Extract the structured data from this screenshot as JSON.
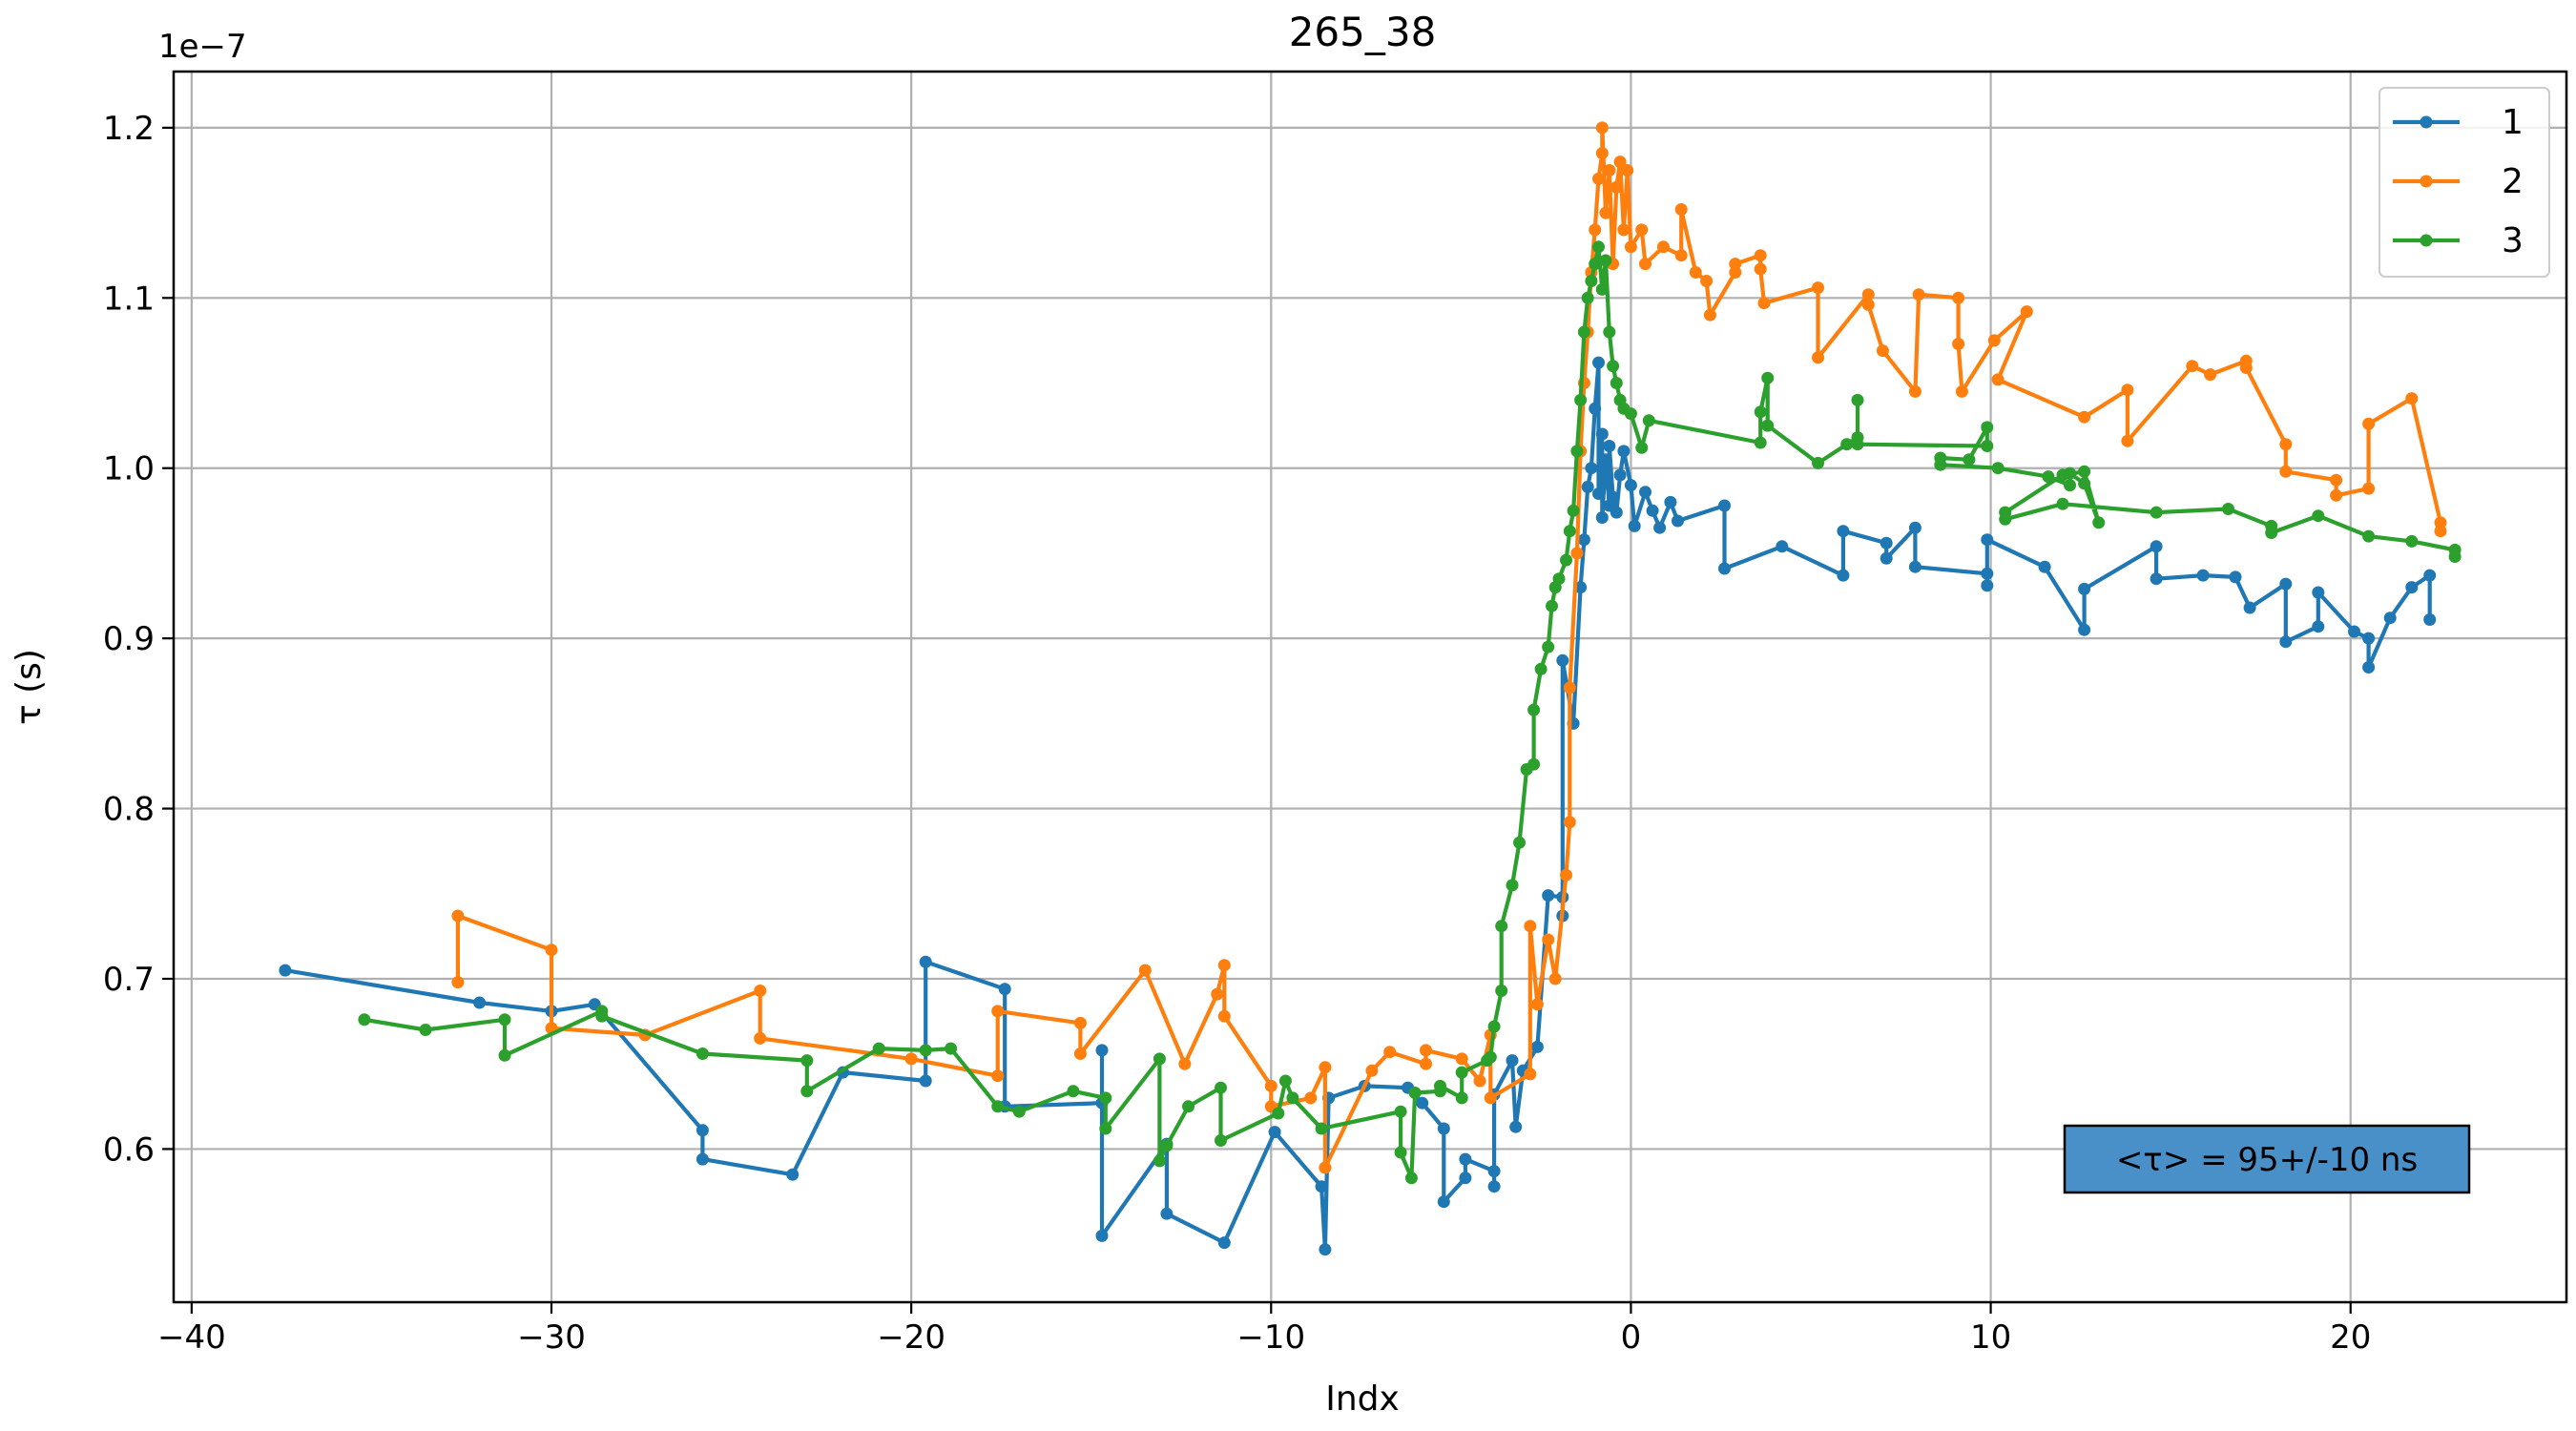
{
  "chart_data": {
    "type": "line",
    "title": "265_38",
    "xlabel": "Indx",
    "ylabel": "τ (s)",
    "y_offset_text": "1e−7",
    "xlim": [
      -40.5,
      26
    ],
    "ylim": [
      0.51,
      1.233
    ],
    "x_ticks": [
      -40,
      -30,
      -20,
      -10,
      0,
      10,
      20
    ],
    "x_tick_labels": [
      "−40",
      "−30",
      "−20",
      "−10",
      "0",
      "10",
      "20"
    ],
    "y_ticks": [
      0.6,
      0.7,
      0.8,
      0.9,
      1.0,
      1.1,
      1.2
    ],
    "y_tick_labels": [
      "0.6",
      "0.7",
      "0.8",
      "0.9",
      "1.0",
      "1.1",
      "1.2"
    ],
    "grid": true,
    "legend_position": "top-right",
    "annotation": "<τ> = 95+/-10 ns",
    "colors": {
      "annotation_bg": "#4a90c8",
      "grid": "#b0b0b0"
    },
    "series": [
      {
        "name": "1",
        "color": "#1f77b4",
        "points": [
          [
            -37.4,
            0.705
          ],
          [
            -32.0,
            0.686
          ],
          [
            -30.0,
            0.681
          ],
          [
            -28.8,
            0.685
          ],
          [
            -25.8,
            0.611
          ],
          [
            -25.8,
            0.594
          ],
          [
            -23.3,
            0.585
          ],
          [
            -21.9,
            0.645
          ],
          [
            -19.6,
            0.64
          ],
          [
            -19.6,
            0.71
          ],
          [
            -17.4,
            0.694
          ],
          [
            -17.4,
            0.625
          ],
          [
            -14.7,
            0.627
          ],
          [
            -14.7,
            0.658
          ],
          [
            -14.7,
            0.549
          ],
          [
            -12.9,
            0.603
          ],
          [
            -12.9,
            0.562
          ],
          [
            -11.3,
            0.545
          ],
          [
            -9.9,
            0.61
          ],
          [
            -8.6,
            0.578
          ],
          [
            -8.5,
            0.541
          ],
          [
            -8.4,
            0.63
          ],
          [
            -7.4,
            0.637
          ],
          [
            -6.2,
            0.636
          ],
          [
            -5.8,
            0.627
          ],
          [
            -5.2,
            0.612
          ],
          [
            -5.2,
            0.569
          ],
          [
            -4.6,
            0.583
          ],
          [
            -4.6,
            0.594
          ],
          [
            -3.8,
            0.587
          ],
          [
            -3.8,
            0.578
          ],
          [
            -3.8,
            0.632
          ],
          [
            -3.3,
            0.652
          ],
          [
            -3.2,
            0.613
          ],
          [
            -3.0,
            0.646
          ],
          [
            -2.6,
            0.66
          ],
          [
            -2.3,
            0.749
          ],
          [
            -1.9,
            0.748
          ],
          [
            -1.9,
            0.737
          ],
          [
            -1.9,
            0.887
          ],
          [
            -1.6,
            0.85
          ],
          [
            -1.4,
            0.93
          ],
          [
            -1.3,
            0.958
          ],
          [
            -1.2,
            0.989
          ],
          [
            -1.1,
            1.0
          ],
          [
            -1.0,
            1.035
          ],
          [
            -0.9,
            1.062
          ],
          [
            -0.9,
            0.985
          ],
          [
            -0.8,
            1.02
          ],
          [
            -0.8,
            0.971
          ],
          [
            -0.7,
            1.005
          ],
          [
            -0.6,
            0.978
          ],
          [
            -0.6,
            1.013
          ],
          [
            -0.5,
            0.983
          ],
          [
            -0.4,
            0.974
          ],
          [
            -0.3,
            0.996
          ],
          [
            -0.2,
            1.01
          ],
          [
            0.0,
            0.99
          ],
          [
            0.1,
            0.966
          ],
          [
            0.4,
            0.986
          ],
          [
            0.6,
            0.975
          ],
          [
            0.8,
            0.965
          ],
          [
            1.1,
            0.98
          ],
          [
            1.3,
            0.969
          ],
          [
            2.6,
            0.978
          ],
          [
            2.6,
            0.941
          ],
          [
            4.2,
            0.954
          ],
          [
            5.9,
            0.937
          ],
          [
            5.9,
            0.963
          ],
          [
            7.1,
            0.956
          ],
          [
            7.1,
            0.947
          ],
          [
            7.9,
            0.965
          ],
          [
            7.9,
            0.942
          ],
          [
            9.9,
            0.938
          ],
          [
            9.9,
            0.931
          ],
          [
            9.9,
            0.958
          ],
          [
            11.5,
            0.942
          ],
          [
            12.6,
            0.905
          ],
          [
            12.6,
            0.929
          ],
          [
            14.6,
            0.954
          ],
          [
            14.6,
            0.935
          ],
          [
            15.9,
            0.937
          ],
          [
            16.8,
            0.936
          ],
          [
            17.2,
            0.918
          ],
          [
            18.2,
            0.932
          ],
          [
            18.2,
            0.898
          ],
          [
            19.1,
            0.907
          ],
          [
            19.1,
            0.927
          ],
          [
            20.1,
            0.904
          ],
          [
            20.5,
            0.9
          ],
          [
            20.5,
            0.883
          ],
          [
            21.1,
            0.912
          ],
          [
            21.7,
            0.93
          ],
          [
            22.2,
            0.937
          ],
          [
            22.2,
            0.911
          ]
        ]
      },
      {
        "name": "2",
        "color": "#ff7f0e",
        "points": [
          [
            -32.6,
            0.698
          ],
          [
            -32.6,
            0.737
          ],
          [
            -30.0,
            0.717
          ],
          [
            -30.0,
            0.671
          ],
          [
            -27.4,
            0.667
          ],
          [
            -24.2,
            0.693
          ],
          [
            -24.2,
            0.665
          ],
          [
            -20.0,
            0.653
          ],
          [
            -17.6,
            0.643
          ],
          [
            -17.6,
            0.681
          ],
          [
            -15.3,
            0.674
          ],
          [
            -15.3,
            0.656
          ],
          [
            -13.5,
            0.705
          ],
          [
            -12.4,
            0.65
          ],
          [
            -11.5,
            0.691
          ],
          [
            -11.3,
            0.708
          ],
          [
            -11.3,
            0.678
          ],
          [
            -10.0,
            0.637
          ],
          [
            -10.0,
            0.625
          ],
          [
            -8.9,
            0.63
          ],
          [
            -8.5,
            0.648
          ],
          [
            -8.5,
            0.589
          ],
          [
            -7.2,
            0.646
          ],
          [
            -6.7,
            0.657
          ],
          [
            -5.7,
            0.65
          ],
          [
            -5.7,
            0.658
          ],
          [
            -4.7,
            0.653
          ],
          [
            -4.2,
            0.64
          ],
          [
            -3.9,
            0.667
          ],
          [
            -3.9,
            0.63
          ],
          [
            -2.8,
            0.644
          ],
          [
            -2.8,
            0.731
          ],
          [
            -2.6,
            0.685
          ],
          [
            -2.3,
            0.723
          ],
          [
            -2.1,
            0.7
          ],
          [
            -1.8,
            0.761
          ],
          [
            -1.7,
            0.792
          ],
          [
            -1.7,
            0.871
          ],
          [
            -1.5,
            0.95
          ],
          [
            -1.4,
            1.01
          ],
          [
            -1.3,
            1.05
          ],
          [
            -1.2,
            1.08
          ],
          [
            -1.1,
            1.115
          ],
          [
            -1.0,
            1.14
          ],
          [
            -0.9,
            1.17
          ],
          [
            -0.8,
            1.185
          ],
          [
            -0.8,
            1.2
          ],
          [
            -0.7,
            1.15
          ],
          [
            -0.6,
            1.175
          ],
          [
            -0.5,
            1.12
          ],
          [
            -0.4,
            1.165
          ],
          [
            -0.3,
            1.18
          ],
          [
            -0.2,
            1.14
          ],
          [
            -0.1,
            1.175
          ],
          [
            0.0,
            1.13
          ],
          [
            0.3,
            1.14
          ],
          [
            0.4,
            1.12
          ],
          [
            0.9,
            1.13
          ],
          [
            1.4,
            1.125
          ],
          [
            1.4,
            1.152
          ],
          [
            1.8,
            1.115
          ],
          [
            2.1,
            1.11
          ],
          [
            2.2,
            1.09
          ],
          [
            2.9,
            1.115
          ],
          [
            2.9,
            1.12
          ],
          [
            3.6,
            1.125
          ],
          [
            3.6,
            1.117
          ],
          [
            3.7,
            1.097
          ],
          [
            5.2,
            1.106
          ],
          [
            5.2,
            1.065
          ],
          [
            6.6,
            1.102
          ],
          [
            6.6,
            1.096
          ],
          [
            7.0,
            1.069
          ],
          [
            7.9,
            1.045
          ],
          [
            8.0,
            1.102
          ],
          [
            9.1,
            1.1
          ],
          [
            9.1,
            1.073
          ],
          [
            9.2,
            1.045
          ],
          [
            10.1,
            1.075
          ],
          [
            11.0,
            1.092
          ],
          [
            10.2,
            1.052
          ],
          [
            12.6,
            1.03
          ],
          [
            13.8,
            1.046
          ],
          [
            13.8,
            1.016
          ],
          [
            15.6,
            1.06
          ],
          [
            16.1,
            1.055
          ],
          [
            17.1,
            1.063
          ],
          [
            17.1,
            1.059
          ],
          [
            18.2,
            1.014
          ],
          [
            18.2,
            0.998
          ],
          [
            19.6,
            0.993
          ],
          [
            19.6,
            0.984
          ],
          [
            20.5,
            0.988
          ],
          [
            20.5,
            1.026
          ],
          [
            21.7,
            1.041
          ],
          [
            22.5,
            0.968
          ],
          [
            22.5,
            0.963
          ]
        ]
      },
      {
        "name": "3",
        "color": "#2ca02c",
        "points": [
          [
            -35.2,
            0.676
          ],
          [
            -33.5,
            0.67
          ],
          [
            -31.3,
            0.676
          ],
          [
            -31.3,
            0.655
          ],
          [
            -28.6,
            0.681
          ],
          [
            -28.6,
            0.678
          ],
          [
            -25.8,
            0.656
          ],
          [
            -22.9,
            0.652
          ],
          [
            -22.9,
            0.634
          ],
          [
            -20.9,
            0.659
          ],
          [
            -19.6,
            0.658
          ],
          [
            -18.9,
            0.659
          ],
          [
            -17.6,
            0.625
          ],
          [
            -17.0,
            0.622
          ],
          [
            -15.5,
            0.634
          ],
          [
            -14.6,
            0.63
          ],
          [
            -14.6,
            0.612
          ],
          [
            -13.1,
            0.653
          ],
          [
            -13.1,
            0.593
          ],
          [
            -12.9,
            0.602
          ],
          [
            -12.3,
            0.625
          ],
          [
            -11.4,
            0.636
          ],
          [
            -11.4,
            0.605
          ],
          [
            -9.8,
            0.621
          ],
          [
            -9.6,
            0.64
          ],
          [
            -9.4,
            0.63
          ],
          [
            -8.6,
            0.612
          ],
          [
            -6.4,
            0.622
          ],
          [
            -6.4,
            0.598
          ],
          [
            -6.1,
            0.583
          ],
          [
            -6.0,
            0.633
          ],
          [
            -5.3,
            0.634
          ],
          [
            -5.3,
            0.637
          ],
          [
            -4.7,
            0.63
          ],
          [
            -4.7,
            0.645
          ],
          [
            -4.0,
            0.652
          ],
          [
            -3.9,
            0.654
          ],
          [
            -3.8,
            0.672
          ],
          [
            -3.6,
            0.693
          ],
          [
            -3.6,
            0.731
          ],
          [
            -3.3,
            0.755
          ],
          [
            -3.1,
            0.78
          ],
          [
            -2.9,
            0.823
          ],
          [
            -2.7,
            0.826
          ],
          [
            -2.7,
            0.858
          ],
          [
            -2.5,
            0.882
          ],
          [
            -2.3,
            0.895
          ],
          [
            -2.2,
            0.919
          ],
          [
            -2.1,
            0.93
          ],
          [
            -2.0,
            0.935
          ],
          [
            -1.8,
            0.946
          ],
          [
            -1.7,
            0.963
          ],
          [
            -1.6,
            0.975
          ],
          [
            -1.5,
            1.01
          ],
          [
            -1.4,
            1.04
          ],
          [
            -1.3,
            1.08
          ],
          [
            -1.2,
            1.1
          ],
          [
            -1.1,
            1.11
          ],
          [
            -1.0,
            1.12
          ],
          [
            -0.9,
            1.13
          ],
          [
            -0.8,
            1.105
          ],
          [
            -0.7,
            1.122
          ],
          [
            -0.6,
            1.08
          ],
          [
            -0.5,
            1.06
          ],
          [
            -0.4,
            1.05
          ],
          [
            -0.3,
            1.04
          ],
          [
            -0.2,
            1.035
          ],
          [
            0.0,
            1.032
          ],
          [
            0.3,
            1.012
          ],
          [
            0.5,
            1.028
          ],
          [
            3.6,
            1.015
          ],
          [
            3.6,
            1.033
          ],
          [
            3.8,
            1.053
          ],
          [
            3.8,
            1.025
          ],
          [
            5.2,
            1.003
          ],
          [
            6.0,
            1.014
          ],
          [
            6.3,
            1.018
          ],
          [
            6.3,
            1.04
          ],
          [
            6.3,
            1.014
          ],
          [
            9.9,
            1.013
          ],
          [
            9.9,
            1.024
          ],
          [
            9.4,
            1.005
          ],
          [
            8.6,
            1.006
          ],
          [
            8.6,
            1.002
          ],
          [
            10.2,
            1.0
          ],
          [
            11.6,
            0.995
          ],
          [
            12.2,
            0.99
          ],
          [
            12.2,
            0.997
          ],
          [
            12.6,
            0.991
          ],
          [
            13.0,
            0.968
          ],
          [
            12.6,
            0.998
          ],
          [
            12.0,
            0.996
          ],
          [
            10.4,
            0.974
          ],
          [
            10.4,
            0.97
          ],
          [
            12.0,
            0.979
          ],
          [
            14.6,
            0.974
          ],
          [
            16.6,
            0.976
          ],
          [
            17.8,
            0.966
          ],
          [
            17.8,
            0.962
          ],
          [
            19.1,
            0.972
          ],
          [
            20.5,
            0.96
          ],
          [
            21.7,
            0.957
          ],
          [
            22.9,
            0.952
          ],
          [
            22.9,
            0.948
          ]
        ]
      }
    ]
  }
}
